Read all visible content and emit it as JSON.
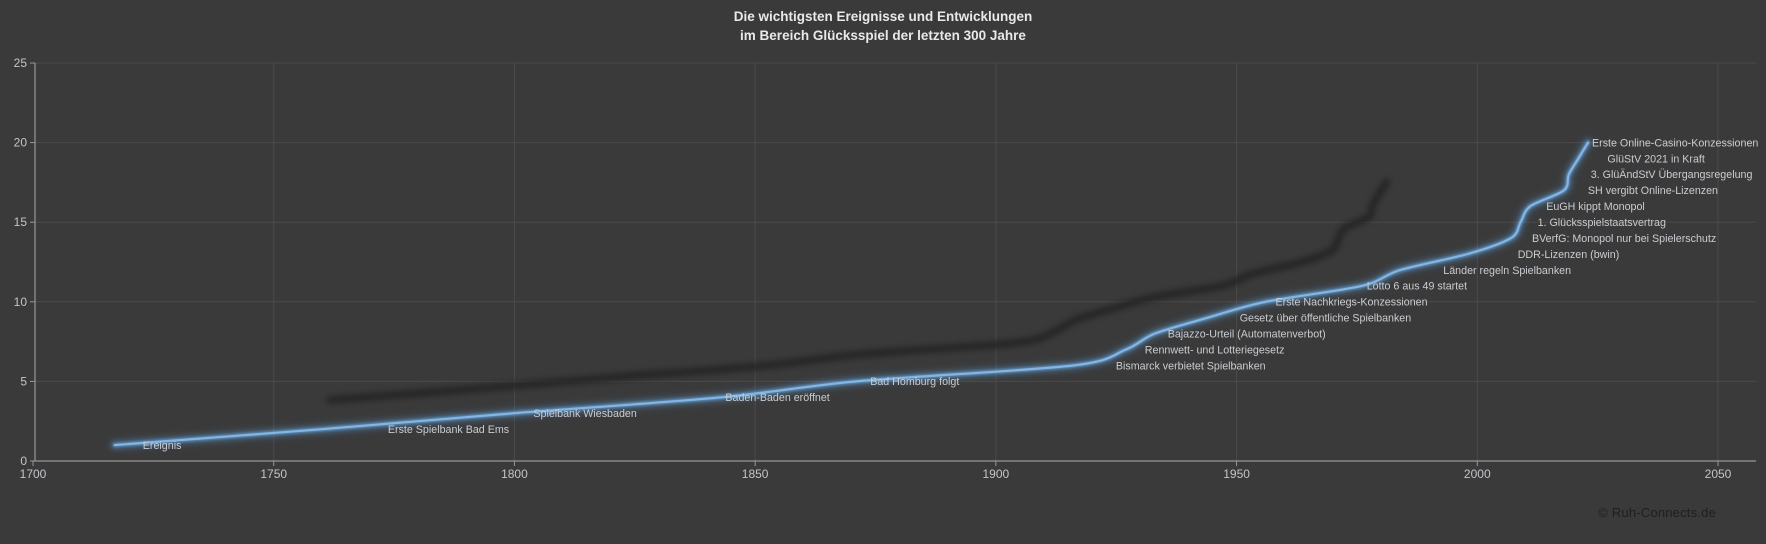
{
  "title": {
    "line1": "Die wichtigsten Ereignisse und Entwicklungen",
    "line2": "im Bereich Glücksspiel der letzten 300 Jahre"
  },
  "footer": {
    "copyright": "© Ruh-Connects.de"
  },
  "chart_data": {
    "type": "line",
    "title": "Die wichtigsten Ereignisse und Entwicklungen im Bereich Glücksspiel der letzten 300 Jahre",
    "series_name": "Ereignis",
    "legend": "none",
    "grid": true,
    "x_axis": {
      "min": 1700,
      "max": 2050,
      "tick_interval": 50,
      "ticks": [
        1700,
        1750,
        1800,
        1850,
        1900,
        1950,
        2000,
        2050
      ]
    },
    "y_axis": {
      "min": 0,
      "max": 25,
      "tick_interval": 5,
      "ticks": [
        0,
        5,
        10,
        15,
        20,
        25
      ]
    },
    "events": [
      {
        "label": "Ereignis",
        "year": 1717,
        "value": 1
      },
      {
        "label": "Erste Spielbank Bad Ems",
        "year": 1760,
        "value": 2
      },
      {
        "label": "Spielbank Wiesbaden",
        "year": 1800,
        "value": 3
      },
      {
        "label": "Baden-Baden eröffnet",
        "year": 1843,
        "value": 4
      },
      {
        "label": "Bad Homburg folgt",
        "year": 1871,
        "value": 5
      },
      {
        "label": "Bismarck verbietet Spielbanken",
        "year": 1916,
        "value": 6
      },
      {
        "label": "Rennwett- und Lotteriegesetz",
        "year": 1927,
        "value": 7
      },
      {
        "label": "Bajazzo-Urteil (Automatenverbot)",
        "year": 1933,
        "value": 8
      },
      {
        "label": "Gesetz über öffentliche Spielbanken",
        "year": 1944,
        "value": 9
      },
      {
        "label": "Erste Nachkriegs-Konzessionen",
        "year": 1956,
        "value": 10
      },
      {
        "label": "Lotto 6 aus 49 startet",
        "year": 1976,
        "value": 11
      },
      {
        "label": "Länder regeln Spielbanken",
        "year": 1984,
        "value": 12
      },
      {
        "label": "DDR-Lizenzen (bwin)",
        "year": 1998,
        "value": 13
      },
      {
        "label": "BVerfG: Monopol nur bei Spielerschutz",
        "year": 2007,
        "value": 14
      },
      {
        "label": "1. Glücksspielstaatsvertrag",
        "year": 2009,
        "value": 15
      },
      {
        "label": "EuGH kippt Monopol",
        "year": 2011,
        "value": 16
      },
      {
        "label": "SH vergibt Online-Lizenzen",
        "year": 2018,
        "value": 17
      },
      {
        "label": "3. GlüÄndStV Übergangsregelung",
        "year": 2019,
        "value": 18
      },
      {
        "label": "GlüStV 2021 in Kraft",
        "year": 2021,
        "value": 19
      },
      {
        "label": "Erste Online-Casino-Konzessionen",
        "year": 2023,
        "value": 20
      }
    ],
    "colors": {
      "background": "#3a3a3a",
      "line": "#5b9bd5",
      "line_core": "#84b5e3",
      "shadow_line": "#242424",
      "grid": "#4b4b4b",
      "axis": "#979797",
      "tick_label": "#c2c5c9",
      "data_label": "#c9ccd1",
      "title": "#e9e9e9",
      "copyright": "#1f1f1f"
    }
  }
}
